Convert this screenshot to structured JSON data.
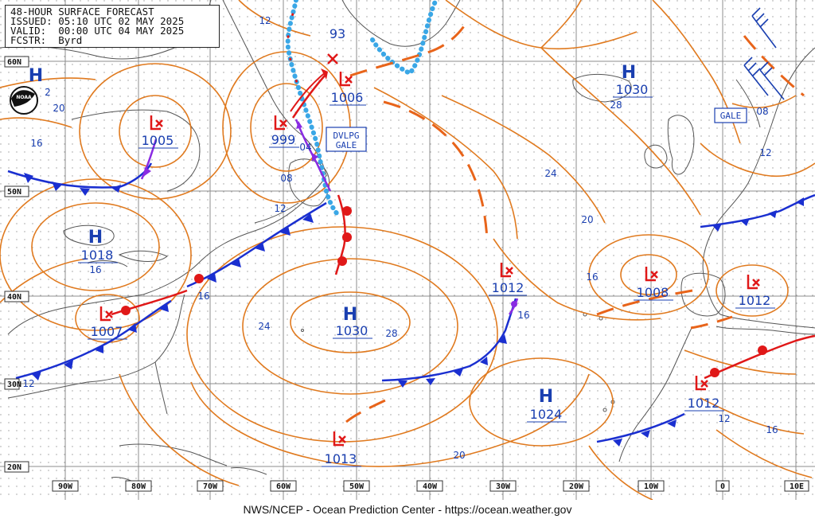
{
  "header": {
    "title": "48-HOUR SURFACE FORECAST",
    "issued": "ISSUED: 05:10 UTC 02 MAY 2025",
    "valid": "VALID:  00:00 UTC 04 MAY 2025",
    "forecaster": "FCSTR:  Byrd"
  },
  "footer": "NWS/NCEP - Ocean Prediction Center - https://ocean.weather.gov",
  "logo_text": "NOAA",
  "lat_labels": [
    "60N",
    "50N",
    "40N",
    "30N",
    "20N"
  ],
  "lon_labels": [
    "90W",
    "80W",
    "70W",
    "60W",
    "50W",
    "40W",
    "30W",
    "20W",
    "10W",
    "0",
    "10E"
  ],
  "pressure_centers": [
    {
      "type": "H",
      "value": "1030"
    },
    {
      "type": "H",
      "value": "1018"
    },
    {
      "type": "H",
      "value": "1030"
    },
    {
      "type": "H",
      "value": "1024"
    },
    {
      "type": "L",
      "value": "1006"
    },
    {
      "type": "L",
      "value": "999"
    },
    {
      "type": "L",
      "value": "1005"
    },
    {
      "type": "L",
      "value": "1007"
    },
    {
      "type": "L",
      "value": "1012"
    },
    {
      "type": "L",
      "value": "1008"
    },
    {
      "type": "L",
      "value": "1012"
    },
    {
      "type": "L",
      "value": "1012"
    },
    {
      "type": "L",
      "value": "1013"
    }
  ],
  "center_93": "93",
  "warnings": [
    "DVLPG GALE",
    "GALE"
  ],
  "isobar_labels": [
    "12",
    "20",
    "16",
    "08",
    "04",
    "12",
    "16",
    "24",
    "28",
    "28",
    "24",
    "20",
    "16",
    "16",
    "12",
    "08",
    "12",
    "12",
    "16",
    "20",
    "16",
    "12",
    "2"
  ],
  "colors": {
    "isobar": "#e07a1f",
    "cold_front": "#1a2fd0",
    "warm_front": "#e01818",
    "occluded": "#8a2be2",
    "trough": "#e8641a",
    "ice_edge": "#3aa7e6",
    "coast": "#555555",
    "grid": "#b0b0b0",
    "center_text": "#1a3fb0"
  }
}
